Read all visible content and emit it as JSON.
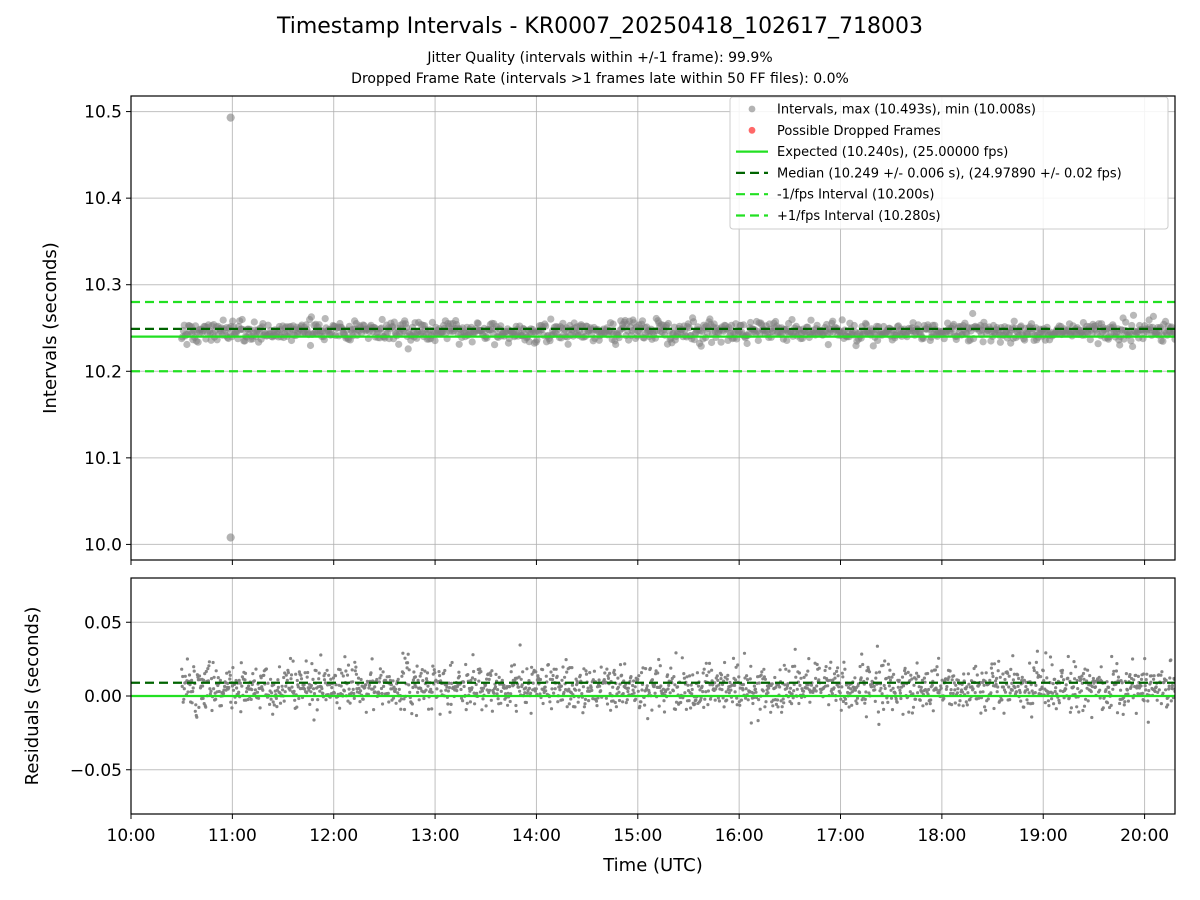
{
  "title": "Timestamp Intervals - KR0007_20250418_102617_718003",
  "subtitles": [
    "Jitter Quality (intervals within +/-1 frame): 99.9%",
    "Dropped Frame Rate (intervals >1 frames late within 50 FF files): 0.0%"
  ],
  "chart_data": [
    {
      "type": "scatter",
      "panel": "intervals",
      "ylabel": "Intervals (seconds)",
      "xlim": [
        "10:00",
        "20:18"
      ],
      "ylim": [
        9.982,
        10.518
      ],
      "yticks": [
        10.0,
        10.1,
        10.2,
        10.3,
        10.4,
        10.5
      ],
      "ytick_labels": [
        "10.0",
        "10.1",
        "10.2",
        "10.3",
        "10.4",
        "10.5"
      ],
      "grid": true,
      "legend_position": "top-right",
      "colors": {
        "intervals": "#808080",
        "dropped": "#ff4d4d",
        "expected": "#22e022",
        "median": "#006400",
        "band": "#22e022"
      },
      "series": [
        {
          "name": "Intervals, max (10.493s), min (10.008s)",
          "kind": "scatter",
          "x_start": "10:30",
          "x_end": "20:18",
          "value_center": 10.246,
          "value_spread": 0.006,
          "outliers": [
            {
              "x": "10:59",
              "y": 10.493
            },
            {
              "x": "10:59",
              "y": 10.008
            }
          ]
        },
        {
          "name": "Possible Dropped Frames",
          "kind": "scatter",
          "values": []
        },
        {
          "name": "Expected (10.240s), (25.00000 fps)",
          "kind": "hline",
          "y": 10.24
        },
        {
          "name": "Median (10.249 +/- 0.006 s), (24.97890 +/- 0.02 fps)",
          "kind": "hline",
          "y": 10.249
        },
        {
          "name": "-1/fps Interval (10.200s)",
          "kind": "hline",
          "y": 10.2
        },
        {
          "name": "+1/fps Interval (10.280s)",
          "kind": "hline",
          "y": 10.28
        }
      ]
    },
    {
      "type": "scatter",
      "panel": "residuals",
      "ylabel": "Residuals (seconds)",
      "xlabel": "Time (UTC)",
      "xlim": [
        "10:00",
        "20:18"
      ],
      "ylim": [
        -0.08,
        0.08
      ],
      "yticks": [
        -0.05,
        0.0,
        0.05
      ],
      "ytick_labels": [
        "−0.05",
        "0.00",
        "0.05"
      ],
      "xticks": [
        "10:00",
        "11:00",
        "12:00",
        "13:00",
        "14:00",
        "15:00",
        "16:00",
        "17:00",
        "18:00",
        "19:00",
        "20:00"
      ],
      "grid": true,
      "series": [
        {
          "kind": "scatter",
          "x_start": "10:30",
          "x_end": "20:18",
          "value_center": 0.006,
          "value_spread": 0.008
        },
        {
          "kind": "hline",
          "y": 0.0
        },
        {
          "kind": "hline",
          "y": 0.009
        }
      ]
    }
  ]
}
